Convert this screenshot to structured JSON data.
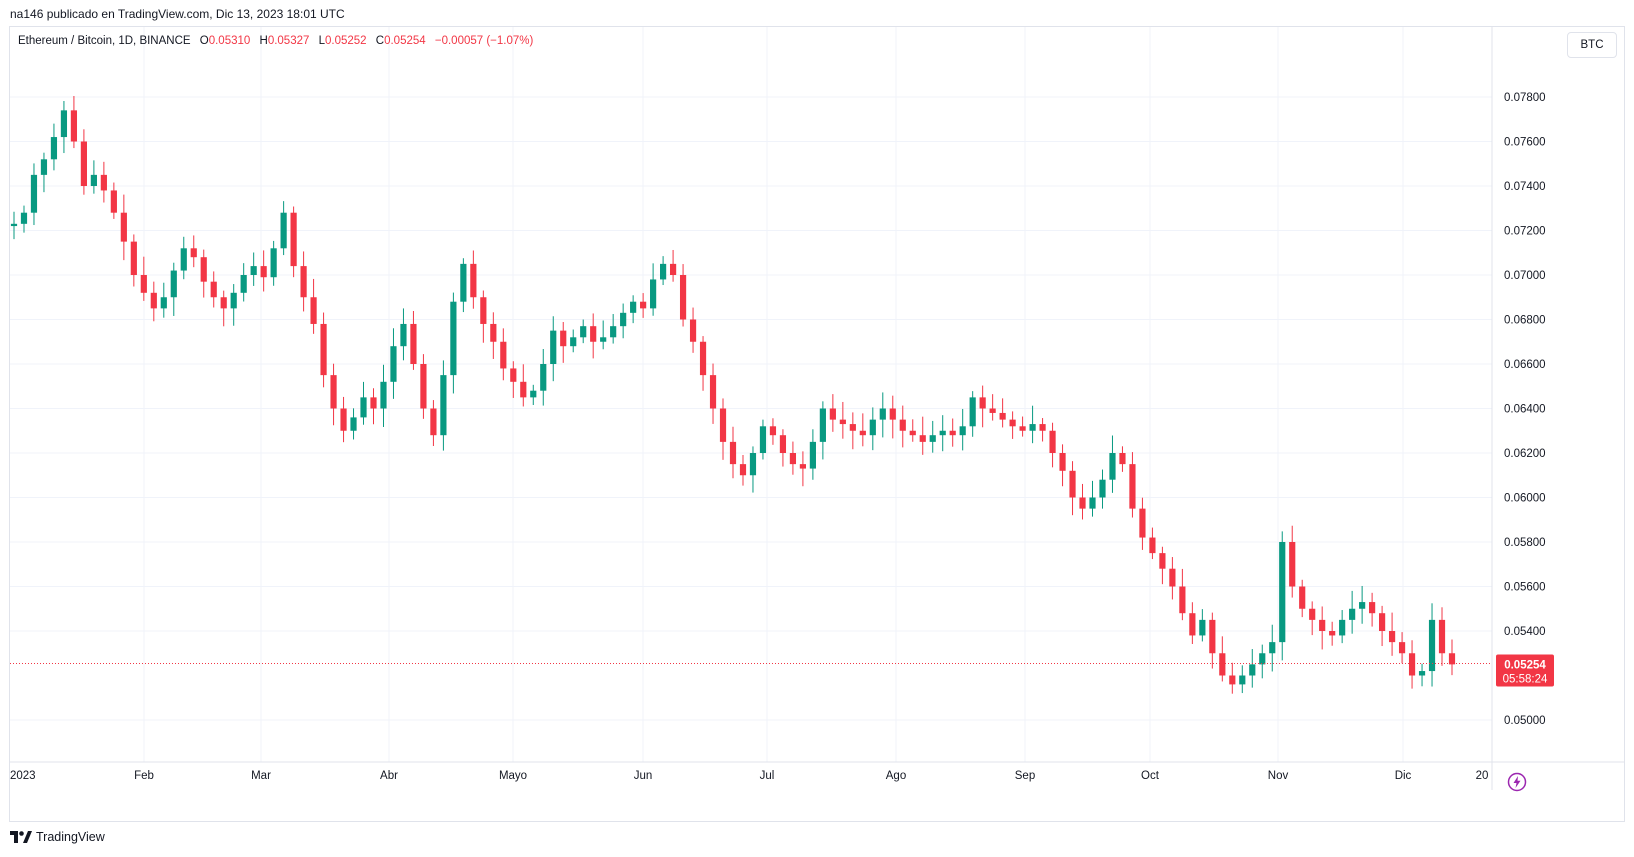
{
  "header": {
    "published": "na146 publicado en TradingView.com, Dic 13, 2023 18:01 UTC"
  },
  "legend": {
    "symbol": "Ethereum / Bitcoin, 1D, BINANCE",
    "open_label": "O",
    "open": "0.05310",
    "high_label": "H",
    "high": "0.05327",
    "low_label": "L",
    "low": "0.05252",
    "close_label": "C",
    "close": "0.05254",
    "change": "−0.00057 (−1.07%)"
  },
  "currency": "BTC",
  "price_tag": {
    "price": "0.05254",
    "countdown": "05:58:24"
  },
  "footer": {
    "brand": "TradingView"
  },
  "icons": {
    "bolt": "lightning-bolt-icon",
    "logo": "tradingview-logo-icon"
  },
  "colors": {
    "up": "#089981",
    "down": "#f23645",
    "grid": "#f0f3fa",
    "text": "#131722"
  },
  "chart_data": {
    "type": "candlestick",
    "y_ticks": [
      "0.07800",
      "0.07600",
      "0.07400",
      "0.07200",
      "0.07000",
      "0.06800",
      "0.06600",
      "0.06400",
      "0.06200",
      "0.06000",
      "0.05800",
      "0.05600",
      "0.05400",
      "0.05000"
    ],
    "x_ticks": [
      "2023",
      "Feb",
      "Mar",
      "Abr",
      "Mayo",
      "Jun",
      "Jul",
      "Ago",
      "Sep",
      "Oct",
      "Nov",
      "Dic",
      "20"
    ],
    "last_price": 0.05254,
    "closes": [
      0.0723,
      0.0728,
      0.0745,
      0.0752,
      0.0762,
      0.0774,
      0.076,
      0.074,
      0.0745,
      0.0738,
      0.0728,
      0.0715,
      0.07,
      0.0692,
      0.0685,
      0.069,
      0.0702,
      0.0712,
      0.0708,
      0.0697,
      0.069,
      0.0685,
      0.0692,
      0.07,
      0.0704,
      0.0699,
      0.0712,
      0.0728,
      0.0704,
      0.069,
      0.0678,
      0.0655,
      0.064,
      0.063,
      0.0636,
      0.0645,
      0.064,
      0.0652,
      0.0668,
      0.0678,
      0.066,
      0.064,
      0.0628,
      0.0655,
      0.0688,
      0.0705,
      0.069,
      0.0678,
      0.067,
      0.0658,
      0.0652,
      0.0645,
      0.0648,
      0.066,
      0.0675,
      0.0668,
      0.0672,
      0.0677,
      0.067,
      0.0672,
      0.0677,
      0.0683,
      0.0688,
      0.0685,
      0.0698,
      0.0705,
      0.07,
      0.068,
      0.067,
      0.0655,
      0.064,
      0.0625,
      0.0615,
      0.061,
      0.062,
      0.0632,
      0.0628,
      0.062,
      0.0615,
      0.0613,
      0.0625,
      0.064,
      0.0635,
      0.0633,
      0.063,
      0.0628,
      0.0635,
      0.064,
      0.0635,
      0.063,
      0.0628,
      0.0625,
      0.0628,
      0.063,
      0.0628,
      0.0632,
      0.0645,
      0.064,
      0.0638,
      0.0635,
      0.0632,
      0.063,
      0.0633,
      0.063,
      0.062,
      0.0612,
      0.06,
      0.0595,
      0.06,
      0.0608,
      0.062,
      0.0615,
      0.0595,
      0.0582,
      0.0575,
      0.0568,
      0.056,
      0.0548,
      0.0538,
      0.0545,
      0.053,
      0.052,
      0.0516,
      0.052,
      0.0525,
      0.053,
      0.0535,
      0.058,
      0.056,
      0.055,
      0.0545,
      0.054,
      0.0538,
      0.0545,
      0.055,
      0.0553,
      0.0548,
      0.054,
      0.0535,
      0.053,
      0.052,
      0.0522,
      0.0545,
      0.053,
      0.0525
    ]
  }
}
